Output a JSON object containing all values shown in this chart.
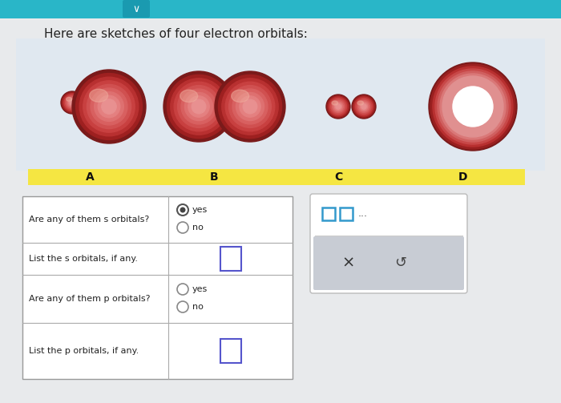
{
  "title": "Here are sketches of four electron orbitals:",
  "bg_color": "#e8eaec",
  "top_bar_color": "#29b6c8",
  "orbital_area_bg": "#e0e8f0",
  "label_bg": "#f5e642",
  "labels": [
    "A",
    "B",
    "C",
    "D"
  ],
  "sphere_dark": "#8b2020",
  "sphere_mid": "#c0392b",
  "sphere_light": "#e57070",
  "sphere_lighter": "#eb9090",
  "sphere_highlight": "#f0b0b0",
  "ring_dark": "#8b2020",
  "ring_mid": "#c0392b",
  "ring_light": "#e57070",
  "ring_lighter": "#f0a0a0",
  "white": "#ffffff",
  "table_border": "#999999",
  "radio_selected_color": "#555555",
  "radio_unselected_color": "#aaaaaa",
  "input_box_color": "#6666cc",
  "panel_bg": "#ffffff",
  "panel_gray": "#c8d0d8",
  "text_color": "#222222",
  "italic_text_color": "#333333"
}
